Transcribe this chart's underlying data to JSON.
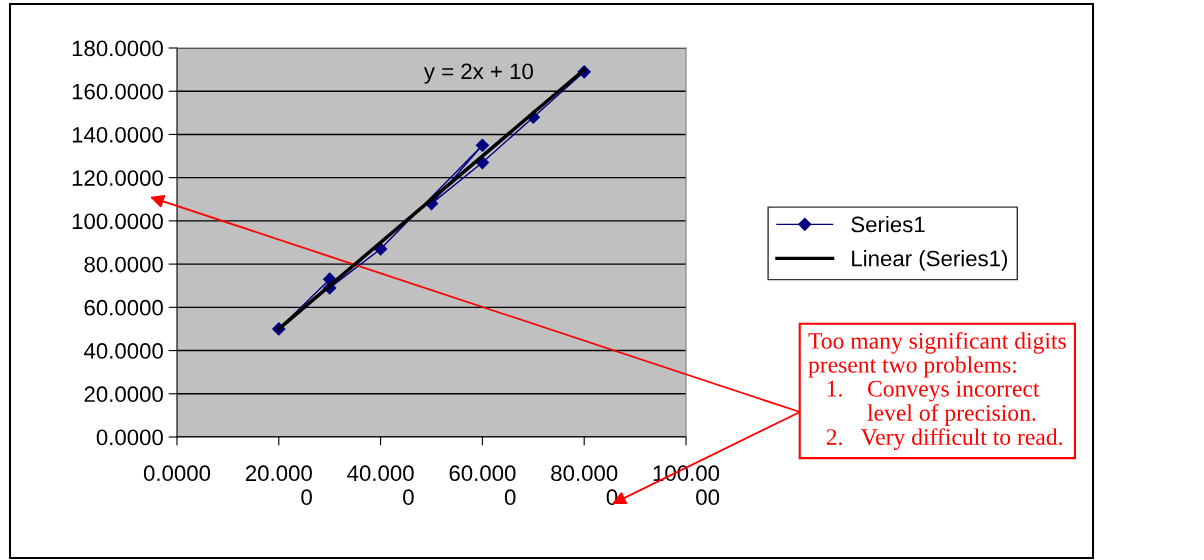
{
  "chart_data": {
    "type": "line",
    "series": [
      {
        "name": "Series1",
        "color": "#000080",
        "x": [
          20,
          30,
          30,
          40,
          60,
          50,
          60,
          70,
          80
        ],
        "values": [
          50,
          73,
          69,
          87,
          135,
          108,
          127,
          148,
          169
        ],
        "marker": "diamond",
        "line_style": "solid"
      },
      {
        "name": "Linear (Series1)",
        "color": "#000000",
        "type": "line",
        "x": [
          20,
          80
        ],
        "values": [
          50,
          170
        ],
        "marker": "none",
        "line_style": "solid"
      }
    ],
    "xlim": [
      0,
      100
    ],
    "xticks": [
      {
        "value": 0,
        "label": "0.0000"
      },
      {
        "value": 20,
        "label": "20.0000"
      },
      {
        "value": 40,
        "label": "40.0000"
      },
      {
        "value": 60,
        "label": "60.0000"
      },
      {
        "value": 80,
        "label": "80.0000"
      },
      {
        "value": 100,
        "label": "100.0000"
      }
    ],
    "ylim": [
      0,
      180
    ],
    "yticks": [
      {
        "value": 0,
        "label": "0.0000"
      },
      {
        "value": 20,
        "label": "20.0000"
      },
      {
        "value": 40,
        "label": "40.0000"
      },
      {
        "value": 60,
        "label": "60.0000"
      },
      {
        "value": 80,
        "label": "80.0000"
      },
      {
        "value": 100,
        "label": "100.0000"
      },
      {
        "value": 120,
        "label": "120.0000"
      },
      {
        "value": 140,
        "label": "140.0000"
      },
      {
        "value": 160,
        "label": "160.0000"
      },
      {
        "value": 180,
        "label": "180.0000"
      }
    ],
    "grid": "y",
    "legend": "right",
    "annotations": [
      "y = 2x + 10",
      "Too many significant digits\npresent two problems:\n   1.    Conveys incorrect\n          level of precision.\n   2.   Very difficult to read."
    ]
  }
}
